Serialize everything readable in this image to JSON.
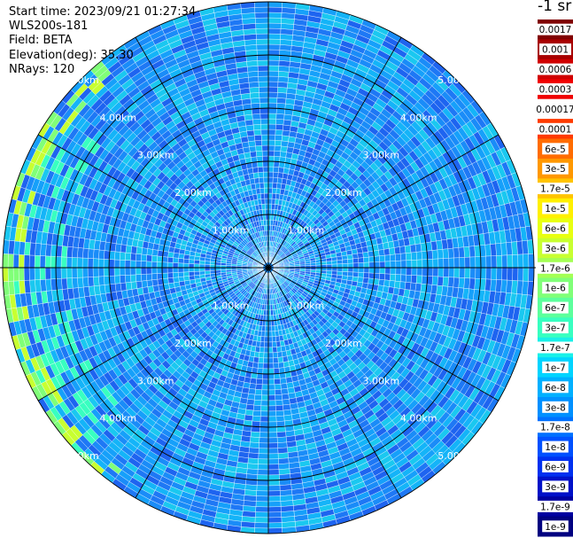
{
  "info": {
    "start_time": "Start time: 2023/09/21 01:27:34",
    "station": "WLS200s-181",
    "field": "Field: BETA",
    "elevation": "Elevation(deg): 35.30",
    "nrays": "NRays: 120"
  },
  "colorbar": {
    "unit_label": "-1 sr",
    "levels": [
      {
        "label": "0.0017",
        "color": "#800000"
      },
      {
        "label": "0.001",
        "color": "#a80000"
      },
      {
        "label": "0.0006",
        "color": "#d00000"
      },
      {
        "label": "0.0003",
        "color": "#f00000"
      },
      {
        "label": "0.00017",
        "color": "#ffffff"
      },
      {
        "label": "0.0001",
        "color": "#ff3a00"
      },
      {
        "label": "6e-5",
        "color": "#ff6c00"
      },
      {
        "label": "3e-5",
        "color": "#ff9800"
      },
      {
        "label": "1.7e-5",
        "color": "#ffc400"
      },
      {
        "label": "1e-5",
        "color": "#fff000"
      },
      {
        "label": "6e-6",
        "color": "#e8ff10"
      },
      {
        "label": "3e-6",
        "color": "#c8ff30"
      },
      {
        "label": "1.7e-6",
        "color": "#a4ff54"
      },
      {
        "label": "1e-6",
        "color": "#80ff78"
      },
      {
        "label": "6e-7",
        "color": "#5cff9c"
      },
      {
        "label": "3e-7",
        "color": "#38ffc0"
      },
      {
        "label": "1.7e-7",
        "color": "#18f0e8"
      },
      {
        "label": "1e-7",
        "color": "#00d4ff"
      },
      {
        "label": "6e-8",
        "color": "#00b0ff"
      },
      {
        "label": "3e-8",
        "color": "#0090ff"
      },
      {
        "label": "1.7e-8",
        "color": "#0070ff"
      },
      {
        "label": "1e-8",
        "color": "#0050ff"
      },
      {
        "label": "6e-9",
        "color": "#0030f0"
      },
      {
        "label": "3e-9",
        "color": "#0010c8"
      },
      {
        "label": "1.7e-9",
        "color": "#0000a0"
      },
      {
        "label": "1e-9",
        "color": "#000080"
      }
    ]
  },
  "chart_data": {
    "type": "heatmap",
    "projection": "polar (PPI)",
    "field": "BETA",
    "elevation_deg": 35.3,
    "n_rays": 120,
    "max_range_km": 5.0,
    "ring_labels": [
      "1.00km",
      "2.00km",
      "3.00km",
      "4.00km",
      "5.00km"
    ],
    "ring_ranges_km": [
      1,
      2,
      3,
      4,
      5
    ],
    "azimuth_gridlines_deg": [
      0,
      30,
      60,
      90,
      120,
      150,
      180,
      210,
      240,
      270,
      300,
      330
    ],
    "dominant_value_range": [
      "6e-8",
      "1e-7"
    ],
    "notable_features": [
      {
        "label": "3e-7",
        "where": "west, 4-5 km"
      },
      {
        "label": "1.7e-6",
        "where": "west edge, ~5 km"
      }
    ]
  }
}
